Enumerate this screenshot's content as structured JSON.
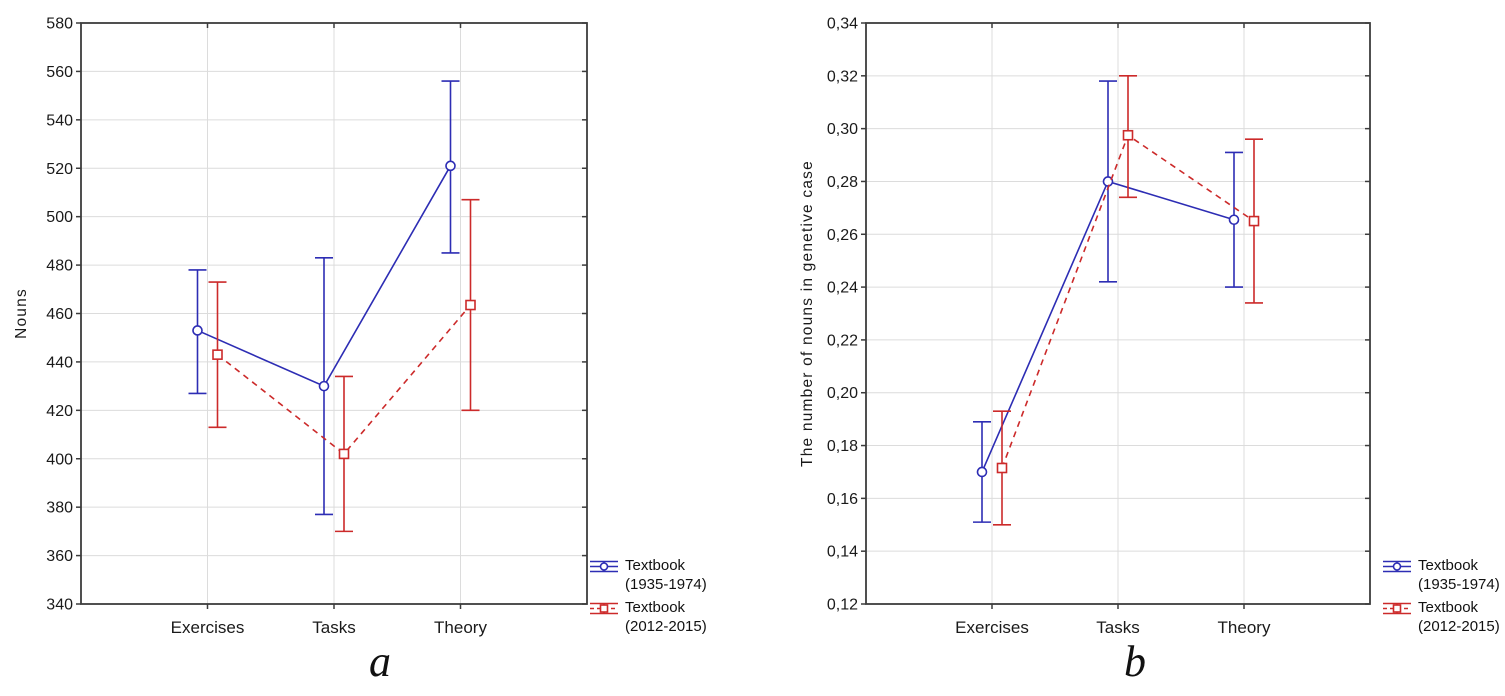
{
  "colors": {
    "series_blue": "#2d2db4",
    "series_red": "#cc2a2a",
    "grid": "#dcdcdc",
    "frame": "#3c3c3c",
    "text": "#1a1a1a"
  },
  "chart_data": [
    {
      "type": "line",
      "caption": "a",
      "ylabel": "Nouns",
      "xlabel": "",
      "categories": [
        "Exercises",
        "Tasks",
        "Theory"
      ],
      "ylim": [
        340,
        580
      ],
      "ytick_values": [
        340,
        360,
        380,
        400,
        420,
        440,
        460,
        480,
        500,
        520,
        540,
        560,
        580
      ],
      "ytick_labels": [
        "340",
        "360",
        "380",
        "400",
        "420",
        "440",
        "460",
        "480",
        "500",
        "520",
        "540",
        "560",
        "580"
      ],
      "grid": true,
      "legend_position": "bottom-right-outside",
      "series": [
        {
          "name": "Textbook (1935-1974)",
          "legend_lines": [
            "Textbook",
            "(1935-1974)"
          ],
          "color": "#2d2db4",
          "marker": "circle",
          "line_style": "solid",
          "means": [
            453,
            430,
            521
          ],
          "ci_upper": [
            478,
            483,
            556
          ],
          "ci_lower": [
            427,
            377,
            485
          ]
        },
        {
          "name": "Textbook (2012-2015)",
          "legend_lines": [
            "Textbook",
            "(2012-2015)"
          ],
          "color": "#cc2a2a",
          "marker": "square",
          "line_style": "dashed",
          "means": [
            443,
            402,
            463.5
          ],
          "ci_upper": [
            473,
            434,
            507
          ],
          "ci_lower": [
            413,
            370,
            420
          ]
        }
      ]
    },
    {
      "type": "line",
      "caption": "b",
      "ylabel": "The number of nouns in genetive case",
      "xlabel": "",
      "categories": [
        "Exercises",
        "Tasks",
        "Theory"
      ],
      "ylim": [
        0.12,
        0.34
      ],
      "ytick_values": [
        0.12,
        0.14,
        0.16,
        0.18,
        0.2,
        0.22,
        0.24,
        0.26,
        0.28,
        0.3,
        0.32,
        0.34
      ],
      "ytick_labels": [
        "0,12",
        "0,14",
        "0,16",
        "0,18",
        "0,20",
        "0,22",
        "0,24",
        "0,26",
        "0,28",
        "0,30",
        "0,32",
        "0,34"
      ],
      "grid": true,
      "legend_position": "bottom-right-outside",
      "series": [
        {
          "name": "Textbook (1935-1974)",
          "legend_lines": [
            "Textbook",
            "(1935-1974)"
          ],
          "color": "#2d2db4",
          "marker": "circle",
          "line_style": "solid",
          "means": [
            0.17,
            0.28,
            0.2655
          ],
          "ci_upper": [
            0.189,
            0.318,
            0.291
          ],
          "ci_lower": [
            0.151,
            0.242,
            0.24
          ]
        },
        {
          "name": "Textbook (2012-2015)",
          "legend_lines": [
            "Textbook",
            "(2012-2015)"
          ],
          "color": "#cc2a2a",
          "marker": "square",
          "line_style": "dashed",
          "means": [
            0.1715,
            0.2975,
            0.265
          ],
          "ci_upper": [
            0.193,
            0.32,
            0.296
          ],
          "ci_lower": [
            0.15,
            0.274,
            0.234
          ]
        }
      ]
    }
  ]
}
